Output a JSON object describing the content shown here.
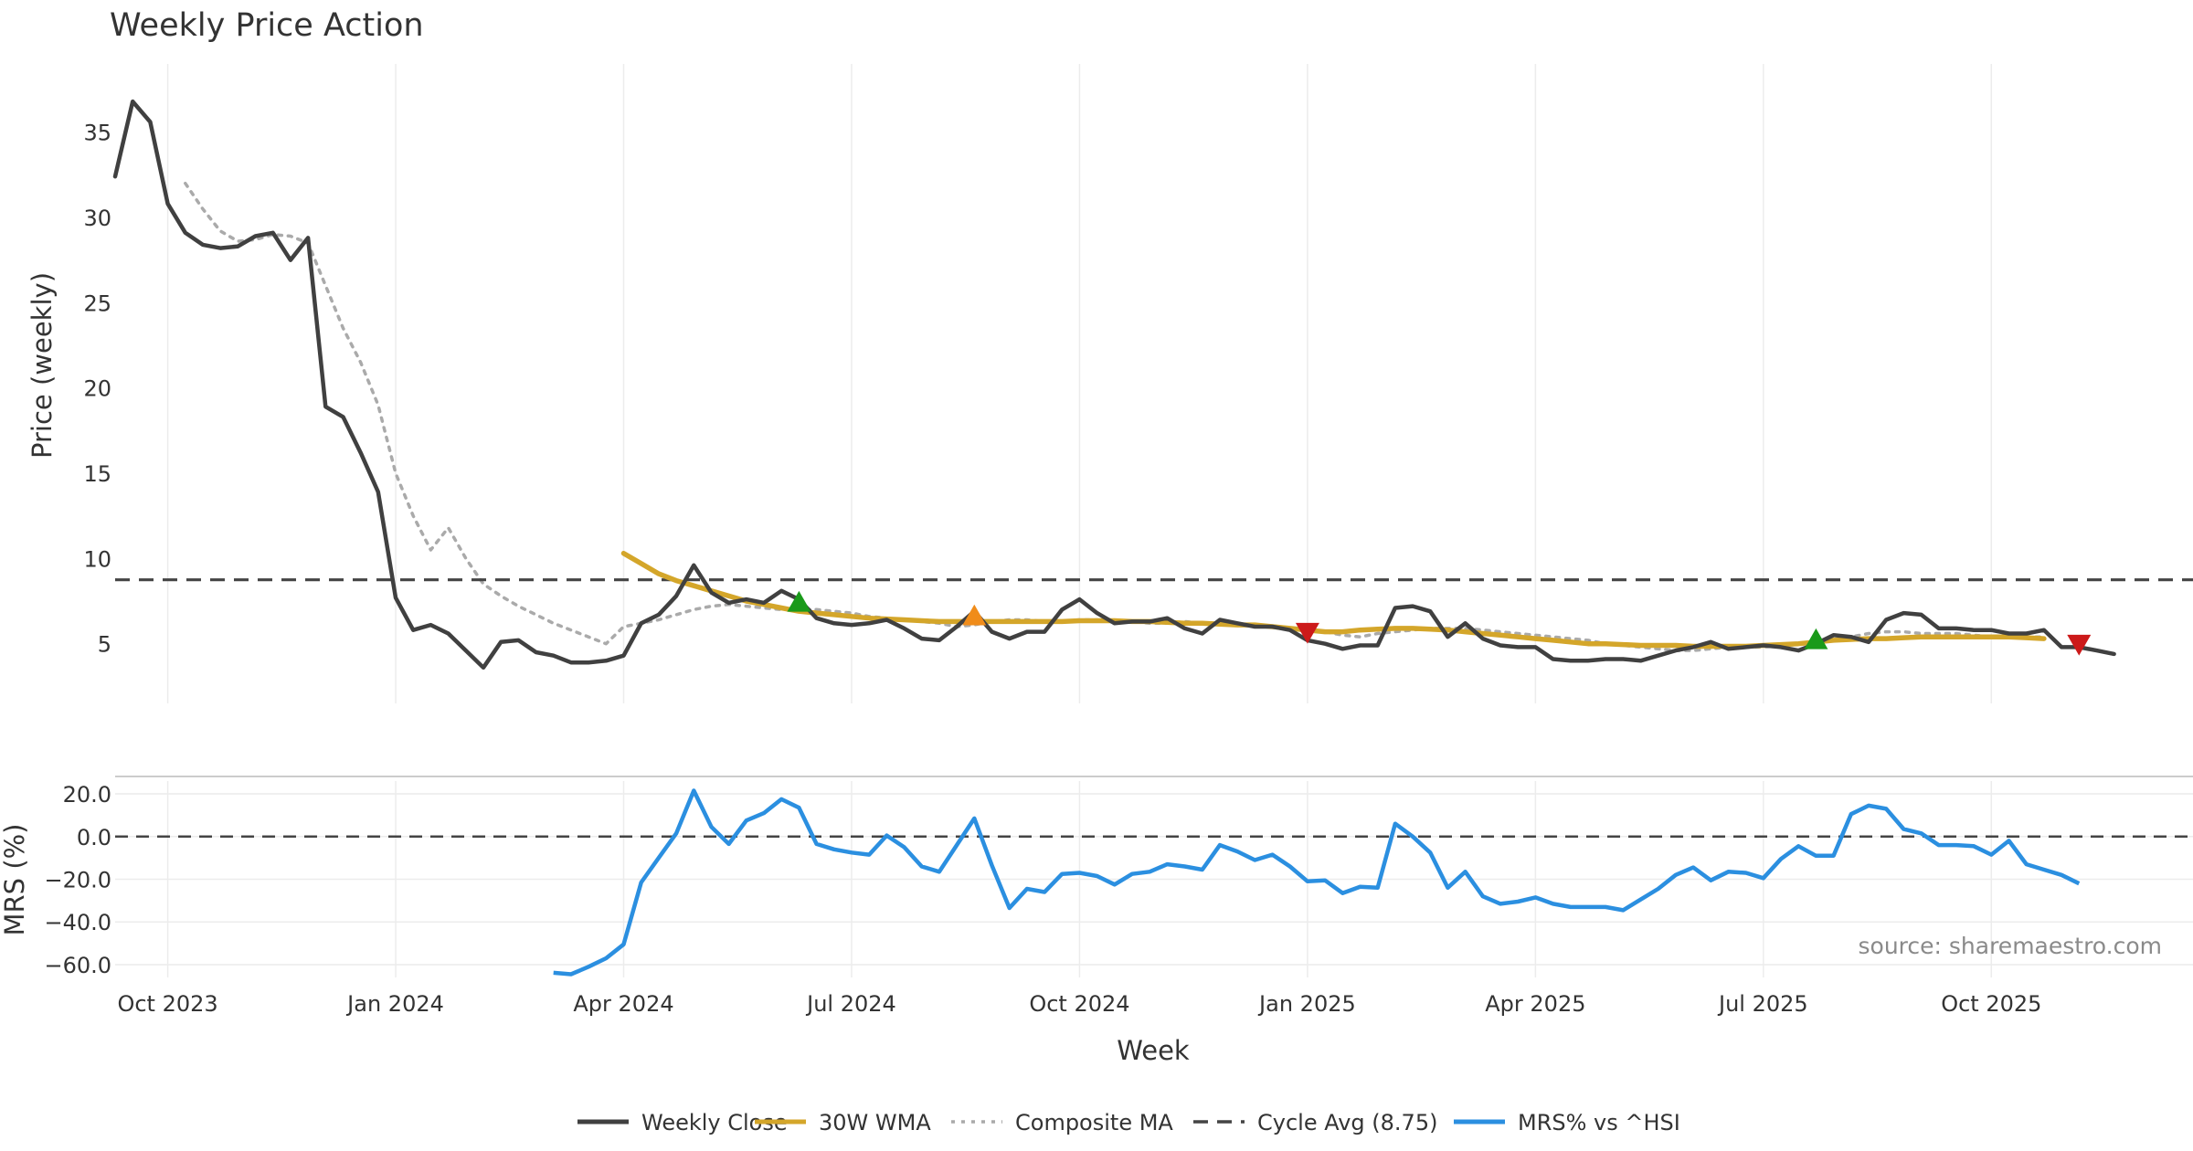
{
  "chart_data": {
    "type": "line",
    "title": "Weekly Price Action",
    "xlabel": "Week",
    "x_tick_labels": [
      "Oct 2023",
      "Jan 2024",
      "Apr 2024",
      "Jul 2024",
      "Oct 2024",
      "Jan 2025",
      "Apr 2025",
      "Jul 2025",
      "Oct 2025"
    ],
    "x_tick_weeks": [
      0,
      13,
      26,
      39,
      52,
      65,
      78,
      91,
      104
    ],
    "x_range_weeks": [
      -3,
      115.5
    ],
    "grid": true,
    "legend_position": "bottom-center",
    "source": "source: sharemaestro.com",
    "price_panel": {
      "ylabel": "Price (weekly)",
      "ylim": [
        1.5,
        39
      ],
      "y_ticks": [
        5,
        10,
        15,
        20,
        25,
        30,
        35
      ],
      "cycle_average": 8.75,
      "series": [
        {
          "name": "Weekly Close",
          "color": "#404040",
          "style": "solid",
          "start_week": -3,
          "values": [
            32.4,
            36.8,
            35.6,
            30.8,
            29.1,
            28.4,
            28.2,
            28.3,
            28.9,
            29.1,
            27.5,
            28.8,
            18.9,
            18.3,
            16.2,
            13.9,
            7.7,
            5.8,
            6.1,
            5.6,
            4.6,
            3.6,
            5.1,
            5.2,
            4.5,
            4.3,
            3.9,
            3.9,
            4.0,
            4.3,
            6.2,
            6.7,
            7.8,
            9.6,
            8.0,
            7.4,
            7.6,
            7.4,
            8.1,
            7.6,
            6.5,
            6.2,
            6.1,
            6.2,
            6.4,
            5.9,
            5.3,
            5.2,
            6.0,
            6.9,
            5.7,
            5.3,
            5.7,
            5.7,
            7.0,
            7.6,
            6.8,
            6.2,
            6.3,
            6.3,
            6.5,
            5.9,
            5.6,
            6.4,
            6.2,
            6.0,
            6.0,
            5.8,
            5.2,
            5.0,
            4.7,
            4.9,
            4.9,
            7.1,
            7.2,
            6.9,
            5.4,
            6.2,
            5.3,
            4.9,
            4.8,
            4.8,
            4.1,
            4.0,
            4.0,
            4.1,
            4.1,
            4.0,
            4.3,
            4.6,
            4.8,
            5.1,
            4.7,
            4.8,
            4.9,
            4.8,
            4.6,
            5.0,
            5.5,
            5.4,
            5.1,
            6.4,
            6.8,
            6.7,
            5.9,
            5.9,
            5.8,
            5.8,
            5.6,
            5.6,
            5.8,
            4.8,
            4.8,
            4.6,
            4.4
          ]
        },
        {
          "name": "30W WMA",
          "color": "#d4a62a",
          "style": "solid",
          "start_week": 26,
          "values": [
            10.3,
            9.7,
            9.1,
            8.7,
            8.4,
            8.1,
            7.8,
            7.5,
            7.3,
            7.1,
            6.9,
            6.8,
            6.7,
            6.6,
            6.5,
            6.45,
            6.4,
            6.35,
            6.3,
            6.3,
            6.3,
            6.3,
            6.3,
            6.3,
            6.3,
            6.3,
            6.35,
            6.35,
            6.35,
            6.3,
            6.3,
            6.25,
            6.2,
            6.2,
            6.15,
            6.1,
            6.1,
            6.0,
            5.9,
            5.8,
            5.7,
            5.7,
            5.8,
            5.85,
            5.9,
            5.9,
            5.85,
            5.8,
            5.7,
            5.6,
            5.5,
            5.4,
            5.3,
            5.2,
            5.1,
            5.0,
            5.0,
            4.95,
            4.9,
            4.9,
            4.9,
            4.85,
            4.85,
            4.85,
            4.85,
            4.9,
            4.95,
            5.0,
            5.1,
            5.2,
            5.25,
            5.3,
            5.3,
            5.35,
            5.4,
            5.4,
            5.4,
            5.4,
            5.4,
            5.4,
            5.35,
            5.3
          ]
        },
        {
          "name": "Composite MA",
          "color": "#aaaaaa",
          "style": "dotted",
          "start_week": 1,
          "values": [
            32.0,
            30.5,
            29.2,
            28.6,
            28.7,
            29.0,
            28.9,
            28.5,
            26.0,
            23.5,
            21.5,
            19.0,
            15.0,
            12.5,
            10.5,
            11.8,
            10.0,
            8.5,
            7.8,
            7.2,
            6.7,
            6.2,
            5.8,
            5.4,
            5.0,
            6.0,
            6.2,
            6.4,
            6.7,
            7.0,
            7.2,
            7.3,
            7.2,
            7.1,
            7.0,
            7.0,
            7.0,
            6.9,
            6.8,
            6.6,
            6.5,
            6.4,
            6.3,
            6.2,
            6.0,
            6.1,
            6.3,
            6.4,
            6.4,
            6.3,
            6.3,
            6.4,
            6.4,
            6.3,
            6.3,
            6.2,
            6.2,
            6.3,
            6.2,
            6.2,
            6.1,
            6.1,
            6.0,
            5.9,
            5.8,
            5.7,
            5.5,
            5.4,
            5.6,
            5.7,
            5.8,
            5.9,
            5.9,
            5.9,
            5.8,
            5.7,
            5.6,
            5.5,
            5.4,
            5.3,
            5.2,
            5.0,
            4.9,
            4.8,
            4.7,
            4.6,
            4.6,
            4.7,
            4.8,
            4.8,
            4.8,
            4.9,
            5.0,
            5.1,
            5.2,
            5.4,
            5.6,
            5.7,
            5.7,
            5.6,
            5.6,
            5.6,
            5.5,
            5.4,
            5.4,
            5.4,
            5.4
          ]
        },
        {
          "name": "Cycle Avg (8.75)",
          "color": "#444444",
          "style": "dashed",
          "constant": 8.75
        }
      ],
      "markers": [
        {
          "week": 36,
          "value": 7.4,
          "shape": "triangle-up",
          "color": "#1a9a1a"
        },
        {
          "week": 46,
          "value": 6.6,
          "shape": "triangle-up",
          "color": "#f08c1a"
        },
        {
          "week": 65,
          "value": 5.7,
          "shape": "triangle-down",
          "color": "#cc1a1a"
        },
        {
          "week": 94,
          "value": 5.2,
          "shape": "triangle-up",
          "color": "#1a9a1a"
        },
        {
          "week": 109,
          "value": 5.0,
          "shape": "triangle-down",
          "color": "#cc1a1a"
        }
      ]
    },
    "mrs_panel": {
      "ylabel": "MRS (%)",
      "ylim": [
        -66,
        26
      ],
      "y_ticks": [
        20.0,
        0.0,
        -20.0,
        -40.0,
        -60.0
      ],
      "y_tick_labels": [
        "20.0",
        "0.0",
        "−20.0",
        "−40.0",
        "−60.0"
      ],
      "zero_line": 0,
      "series": [
        {
          "name": "MRS% vs ^HSI",
          "color": "#2b8fe0",
          "style": "solid",
          "start_week": 22,
          "values": [
            -63.8,
            -64.5,
            -61.0,
            -57.0,
            -50.5,
            -21.5,
            -10.0,
            1.5,
            21.5,
            4.5,
            -3.5,
            7.5,
            11.0,
            17.5,
            13.5,
            -3.5,
            -6.0,
            -7.5,
            -8.5,
            0.5,
            -5.0,
            -14.0,
            -16.5,
            -4.0,
            8.5,
            -13.5,
            -33.5,
            -24.5,
            -26.0,
            -17.5,
            -17.0,
            -18.5,
            -22.5,
            -17.5,
            -16.5,
            -13.0,
            -14.0,
            -15.5,
            -4.0,
            -7.0,
            -11.0,
            -8.5,
            -14.0,
            -21.0,
            -20.5,
            -26.5,
            -23.5,
            -24.0,
            6.0,
            0.0,
            -7.5,
            -24.0,
            -16.5,
            -28.0,
            -31.5,
            -30.5,
            -28.5,
            -31.5,
            -33.0,
            -33.0,
            -33.0,
            -34.5,
            -29.5,
            -24.5,
            -18.0,
            -14.5,
            -20.5,
            -16.5,
            -17.0,
            -19.5,
            -10.5,
            -4.5,
            -9.0,
            -9.0,
            10.5,
            14.5,
            13.0,
            3.5,
            1.5,
            -4.0,
            -4.0,
            -4.5,
            -8.5,
            -2.0,
            -13.0,
            -15.5,
            -18.0,
            -22.0
          ]
        }
      ]
    }
  }
}
